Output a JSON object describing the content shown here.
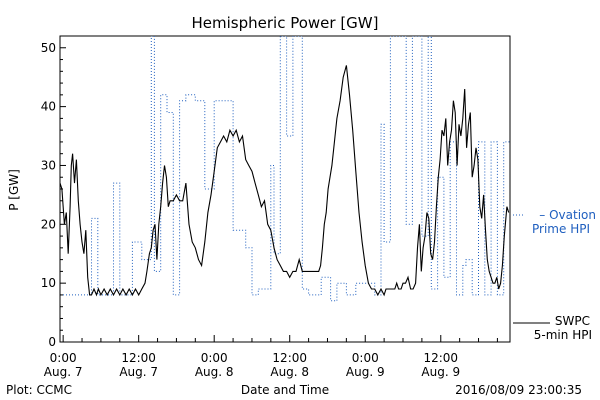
{
  "chart_data": {
    "type": "line",
    "title": "Hemispheric Power [GW]",
    "xlabel": "Date and Time",
    "ylabel": "P [GW]",
    "ylim": [
      0,
      52
    ],
    "xlim": [
      -0.5,
      71
    ],
    "yticks": [
      0,
      10,
      20,
      30,
      40,
      50
    ],
    "xticks": [
      {
        "x": 0,
        "time": "0:00",
        "date": "Aug. 7"
      },
      {
        "x": 12,
        "time": "12:00",
        "date": "Aug. 7"
      },
      {
        "x": 24,
        "time": "0:00",
        "date": "Aug. 8"
      },
      {
        "x": 36,
        "time": "12:00",
        "date": "Aug. 8"
      },
      {
        "x": 48,
        "time": "0:00",
        "date": "Aug. 9"
      },
      {
        "x": 60,
        "time": "12:00",
        "date": "Aug. 9"
      }
    ],
    "grid": false,
    "legend_placement": "right",
    "series": [
      {
        "name": "SWPC 5-min HPI",
        "style": "solid",
        "color": "#000000",
        "x": [
          -0.5,
          -0.2,
          0.2,
          0.5,
          0.8,
          1.1,
          1.3,
          1.5,
          1.8,
          2.1,
          2.4,
          2.7,
          3.0,
          3.3,
          3.6,
          3.9,
          4.2,
          4.5,
          4.9,
          5.3,
          5.6,
          6.0,
          6.5,
          7.0,
          7.5,
          8.0,
          8.5,
          9.0,
          9.5,
          10.0,
          10.5,
          11.0,
          11.5,
          12.0,
          12.5,
          13.0,
          13.3,
          13.7,
          14.0,
          14.3,
          14.6,
          14.9,
          15.2,
          15.5,
          15.8,
          16.1,
          16.4,
          16.7,
          17.0,
          17.5,
          18.0,
          18.5,
          19.0,
          19.5,
          20.0,
          20.5,
          21.0,
          21.5,
          22.0,
          22.5,
          23.0,
          23.5,
          24.0,
          24.5,
          25.0,
          25.5,
          26.0,
          26.5,
          27.0,
          27.5,
          28.0,
          28.5,
          29.0,
          29.5,
          30.0,
          30.5,
          31.0,
          31.5,
          32.0,
          32.5,
          33.0,
          33.5,
          34.0,
          34.5,
          35.0,
          35.5,
          36.0,
          36.5,
          37.0,
          37.5,
          38.0,
          38.5,
          39.0,
          39.5,
          40.0,
          40.3,
          40.6,
          40.9,
          41.2,
          41.5,
          41.8,
          42.1,
          42.4,
          42.7,
          43.0,
          43.5,
          44.0,
          44.5,
          45.0,
          45.5,
          46.0,
          46.5,
          47.0,
          47.5,
          48.0,
          48.5,
          49.0,
          49.5,
          50.0,
          50.5,
          51.0,
          51.3,
          51.7,
          52.0,
          52.3,
          52.7,
          53.0,
          53.3,
          53.7,
          54.0,
          54.4,
          54.8,
          55.2,
          55.6,
          56.0,
          56.3,
          56.6,
          56.9,
          57.2,
          57.5,
          57.8,
          58.1,
          58.4,
          58.7,
          59.0,
          59.3,
          59.6,
          59.9,
          60.2,
          60.5,
          60.8,
          61.1,
          61.4,
          61.7,
          62.0,
          62.3,
          62.6,
          62.9,
          63.2,
          63.5,
          63.8,
          64.1,
          64.4,
          64.7,
          65.0,
          65.3,
          65.6,
          65.9,
          66.2,
          66.5,
          66.8,
          67.1,
          67.4,
          67.7,
          68.0,
          68.3,
          68.6,
          68.9,
          69.2,
          69.5,
          69.8,
          70.1,
          70.5,
          70.8
        ],
        "values": [
          27,
          26,
          20,
          22,
          15,
          23,
          30,
          32,
          27,
          31,
          24,
          20,
          17,
          15,
          19,
          11,
          8,
          8,
          9,
          8,
          9,
          8,
          9,
          8,
          9,
          8,
          9,
          8,
          9,
          8,
          9,
          8,
          9,
          8,
          9,
          10,
          12,
          15,
          16,
          19,
          20,
          14,
          20,
          23,
          27,
          30,
          28,
          23,
          24,
          24,
          25,
          24,
          24,
          27,
          20,
          17,
          16,
          14,
          13,
          17,
          22,
          25,
          29,
          33,
          34,
          35,
          34,
          36,
          35,
          36,
          34,
          35,
          31,
          30,
          29,
          27,
          25,
          23,
          24,
          20,
          19,
          16,
          14,
          13,
          12,
          12,
          11,
          12,
          12,
          14,
          12,
          12,
          12,
          12,
          12,
          12,
          12,
          13,
          16,
          20,
          22,
          26,
          28,
          30,
          33,
          38,
          41,
          45,
          47,
          42,
          36,
          29,
          22,
          17,
          13,
          10,
          9,
          9,
          8,
          9,
          8,
          9,
          9,
          9,
          9,
          9,
          10,
          9,
          9,
          10,
          10,
          11,
          9,
          9,
          10,
          16,
          20,
          12,
          16,
          18,
          22,
          21,
          15,
          14,
          17,
          23,
          28,
          31,
          36,
          35,
          38,
          30,
          34,
          36,
          41,
          39,
          30,
          37,
          35,
          38,
          43,
          33,
          37,
          39,
          28,
          30,
          33,
          31,
          23,
          21,
          25,
          19,
          14,
          12,
          11,
          10,
          10,
          11,
          9,
          10,
          13,
          18,
          23,
          22
        ]
      },
      {
        "name": "Ovation Prime HPI",
        "style": "dotted",
        "color": "#1f5fbf",
        "x": [
          -0.5,
          4.5,
          4.5,
          5.5,
          5.5,
          8.0,
          8.0,
          9.0,
          9.0,
          11.0,
          11.0,
          12.5,
          12.5,
          14.0,
          14.0,
          14.5,
          14.5,
          15.5,
          15.5,
          16.5,
          16.5,
          17.5,
          17.5,
          18.5,
          18.5,
          19.5,
          19.5,
          21.0,
          21.0,
          22.5,
          22.5,
          24.0,
          24.0,
          27.0,
          27.0,
          29.0,
          29.0,
          30.0,
          30.0,
          31.0,
          31.0,
          33.0,
          33.0,
          33.5,
          33.5,
          34.5,
          34.5,
          35.5,
          35.5,
          36.5,
          36.5,
          38.0,
          38.0,
          39.0,
          39.0,
          41.0,
          41.0,
          42.5,
          42.5,
          43.5,
          43.5,
          45.0,
          45.0,
          46.5,
          46.5,
          48.5,
          48.5,
          49.5,
          49.5,
          50.5,
          50.5,
          51.0,
          51.0,
          52.0,
          52.0,
          54.5,
          54.5,
          55.5,
          55.5,
          57.0,
          57.0,
          58.0,
          58.0,
          58.5,
          58.5,
          59.5,
          59.5,
          60.5,
          60.5,
          61.5,
          61.5,
          62.5,
          62.5,
          63.5,
          63.5,
          64.0,
          64.0,
          65.0,
          65.0,
          66.0,
          66.0,
          67.0,
          67.0,
          68.0,
          68.0,
          69.0,
          69.0,
          70.0,
          70.0,
          71.0
        ],
        "values": [
          8,
          8,
          21,
          21,
          8,
          8,
          27,
          27,
          8,
          8,
          17,
          17,
          14,
          14,
          52,
          52,
          12,
          12,
          42,
          42,
          39,
          39,
          8,
          8,
          41,
          41,
          42,
          42,
          41,
          41,
          26,
          26,
          41,
          41,
          19,
          19,
          16,
          16,
          8,
          8,
          9,
          9,
          30,
          30,
          15,
          15,
          52,
          52,
          35,
          35,
          52,
          52,
          9,
          9,
          8,
          8,
          11,
          11,
          7,
          7,
          10,
          10,
          8,
          8,
          10,
          10,
          10,
          10,
          8,
          8,
          37,
          37,
          17,
          17,
          52,
          52,
          20,
          20,
          52,
          52,
          18,
          18,
          52,
          52,
          9,
          9,
          28,
          28,
          11,
          11,
          34,
          34,
          8,
          8,
          13,
          13,
          14,
          14,
          8,
          8,
          34,
          34,
          8,
          8,
          34,
          34,
          8,
          8,
          34,
          34
        ],
        "note_values": "estimated step levels"
      }
    ],
    "legend": [
      {
        "label_lines": [
          "– Ovation",
          "Prime HPI"
        ],
        "color": "#1f5fbf"
      },
      {
        "label_lines": [
          "SWPC",
          "5-min HPI"
        ],
        "color": "#000000"
      }
    ]
  },
  "footer": {
    "plot_credit": "Plot: CCMC",
    "timestamp": "2016/08/09 23:00:35"
  }
}
